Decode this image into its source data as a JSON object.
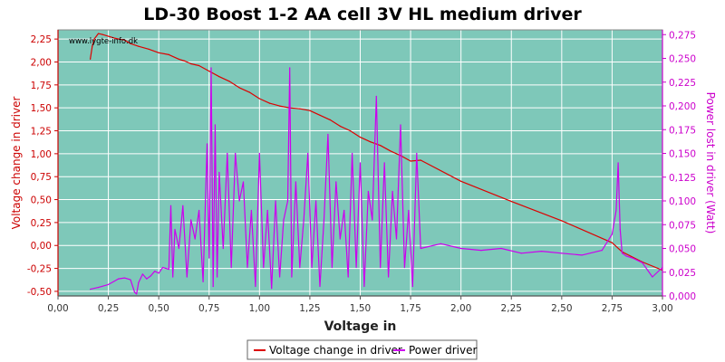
{
  "chart_data": {
    "type": "line",
    "title": "LD-30 Boost 1-2 AA cell 3V HL medium driver",
    "watermark": "www.lygte-info.dk",
    "xlabel": "Voltage in",
    "ylabel_left": "Voltage change in driver",
    "ylabel_right": "Power lost in driver (Watt)",
    "xlim": [
      0,
      3.0
    ],
    "ylim_left": [
      -0.55,
      2.35
    ],
    "ylim_right": [
      0,
      0.28
    ],
    "x_ticks": [
      "0,00",
      "0,25",
      "0,50",
      "0,75",
      "1,00",
      "1,25",
      "1,50",
      "1,75",
      "2,00",
      "2,25",
      "2,50",
      "2,75",
      "3,00"
    ],
    "y_left_ticks": [
      "-0,50",
      "-0,25",
      "0,00",
      "0,25",
      "0,50",
      "0,75",
      "1,00",
      "1,25",
      "1,50",
      "1,75",
      "2,00",
      "2,25"
    ],
    "y_right_ticks": [
      "0,000",
      "0,025",
      "0,050",
      "0,075",
      "0,100",
      "0,125",
      "0,150",
      "0,175",
      "0,200",
      "0,225",
      "0,250",
      "0,275"
    ],
    "grid": true,
    "legend_position": "bottom",
    "colors": {
      "plot_bg": "#7ec8b9",
      "grid": "#ffffff",
      "voltage": "#dd0000",
      "power": "#cc00ee",
      "left_axis": "#cc0000",
      "right_axis": "#cc00cc"
    },
    "series": [
      {
        "name": "Voltage change in driver",
        "axis": "left",
        "x": [
          0.16,
          0.17,
          0.18,
          0.2,
          0.22,
          0.25,
          0.28,
          0.3,
          0.33,
          0.36,
          0.4,
          0.45,
          0.5,
          0.55,
          0.6,
          0.63,
          0.66,
          0.7,
          0.75,
          0.8,
          0.85,
          0.9,
          0.95,
          1.0,
          1.05,
          1.1,
          1.15,
          1.2,
          1.25,
          1.3,
          1.35,
          1.4,
          1.45,
          1.5,
          1.55,
          1.6,
          1.65,
          1.7,
          1.75,
          1.8,
          2.0,
          2.25,
          2.5,
          2.75,
          2.8,
          2.9,
          3.0
        ],
        "y": [
          2.03,
          2.17,
          2.25,
          2.31,
          2.3,
          2.28,
          2.26,
          2.25,
          2.24,
          2.2,
          2.17,
          2.14,
          2.1,
          2.08,
          2.03,
          2.01,
          1.98,
          1.96,
          1.9,
          1.84,
          1.79,
          1.72,
          1.67,
          1.6,
          1.55,
          1.52,
          1.5,
          1.49,
          1.47,
          1.42,
          1.37,
          1.3,
          1.25,
          1.18,
          1.13,
          1.09,
          1.03,
          0.98,
          0.92,
          0.93,
          0.7,
          0.48,
          0.27,
          0.03,
          -0.07,
          -0.18,
          -0.27
        ]
      },
      {
        "name": "Power driver",
        "axis": "right",
        "x": [
          0.16,
          0.2,
          0.25,
          0.3,
          0.33,
          0.36,
          0.38,
          0.39,
          0.4,
          0.42,
          0.44,
          0.46,
          0.48,
          0.5,
          0.52,
          0.55,
          0.56,
          0.57,
          0.58,
          0.6,
          0.62,
          0.64,
          0.66,
          0.68,
          0.7,
          0.72,
          0.74,
          0.75,
          0.76,
          0.77,
          0.78,
          0.79,
          0.8,
          0.82,
          0.84,
          0.86,
          0.88,
          0.9,
          0.92,
          0.94,
          0.96,
          0.98,
          1.0,
          1.02,
          1.04,
          1.06,
          1.08,
          1.1,
          1.12,
          1.14,
          1.15,
          1.16,
          1.18,
          1.2,
          1.22,
          1.24,
          1.26,
          1.28,
          1.3,
          1.32,
          1.34,
          1.36,
          1.38,
          1.4,
          1.42,
          1.44,
          1.46,
          1.48,
          1.5,
          1.52,
          1.54,
          1.56,
          1.58,
          1.6,
          1.62,
          1.64,
          1.66,
          1.68,
          1.7,
          1.72,
          1.74,
          1.76,
          1.78,
          1.8,
          1.9,
          2.0,
          2.1,
          2.2,
          2.3,
          2.4,
          2.5,
          2.6,
          2.7,
          2.75,
          2.77,
          2.78,
          2.79,
          2.8,
          2.82,
          2.85,
          2.9,
          2.95,
          3.0
        ],
        "y": [
          0.007,
          0.009,
          0.012,
          0.018,
          0.019,
          0.017,
          0.004,
          0.002,
          0.014,
          0.023,
          0.018,
          0.021,
          0.026,
          0.024,
          0.03,
          0.028,
          0.095,
          0.02,
          0.07,
          0.05,
          0.095,
          0.02,
          0.08,
          0.06,
          0.09,
          0.015,
          0.16,
          0.04,
          0.24,
          0.01,
          0.18,
          0.02,
          0.13,
          0.05,
          0.15,
          0.03,
          0.15,
          0.1,
          0.12,
          0.03,
          0.09,
          0.01,
          0.15,
          0.03,
          0.09,
          0.008,
          0.1,
          0.02,
          0.08,
          0.1,
          0.24,
          0.02,
          0.12,
          0.03,
          0.08,
          0.15,
          0.03,
          0.1,
          0.01,
          0.08,
          0.17,
          0.03,
          0.12,
          0.06,
          0.09,
          0.02,
          0.15,
          0.03,
          0.14,
          0.01,
          0.11,
          0.08,
          0.21,
          0.03,
          0.14,
          0.02,
          0.11,
          0.06,
          0.18,
          0.03,
          0.09,
          0.01,
          0.15,
          0.05,
          0.055,
          0.05,
          0.048,
          0.05,
          0.045,
          0.047,
          0.045,
          0.043,
          0.048,
          0.065,
          0.09,
          0.14,
          0.07,
          0.045,
          0.042,
          0.04,
          0.035,
          0.02,
          0.03
        ]
      }
    ]
  }
}
